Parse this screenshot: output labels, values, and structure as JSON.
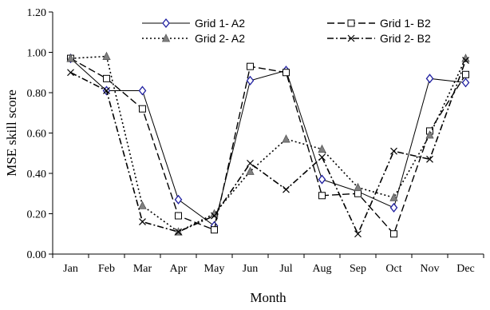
{
  "chart_data": {
    "type": "line",
    "categories": [
      "Jan",
      "Feb",
      "Mar",
      "Apr",
      "May",
      "Jun",
      "Jul",
      "Aug",
      "Sep",
      "Oct",
      "Nov",
      "Dec"
    ],
    "xlabel": "Month",
    "ylabel": "MSE skill score",
    "ylim": [
      0,
      1.2
    ],
    "yticks": [
      "0.00",
      "0.20",
      "0.40",
      "0.60",
      "0.80",
      "1.00",
      "1.20"
    ],
    "grid": false,
    "legend_position": "top",
    "series": [
      {
        "name": "Grid 1- A2",
        "values": [
          0.97,
          0.81,
          0.81,
          0.27,
          0.14,
          0.86,
          0.91,
          0.37,
          0.31,
          0.23,
          0.87,
          0.85
        ],
        "color": "#000000",
        "marker": "diamond",
        "marker_color": "#1f1fa0",
        "dash": "solid"
      },
      {
        "name": "Grid 1- B2",
        "values": [
          0.97,
          0.87,
          0.72,
          0.19,
          0.12,
          0.93,
          0.9,
          0.29,
          0.3,
          0.1,
          0.61,
          0.89
        ],
        "color": "#000000",
        "marker": "square",
        "marker_color": "#000000",
        "dash": "longdash"
      },
      {
        "name": "Grid 2- A2",
        "values": [
          0.97,
          0.98,
          0.24,
          0.11,
          0.2,
          0.41,
          0.57,
          0.52,
          0.33,
          0.28,
          0.59,
          0.97
        ],
        "color": "#000000",
        "marker": "triangle",
        "marker_color": "#808080",
        "dash": "dotted"
      },
      {
        "name": "Grid 2- B2",
        "values": [
          0.9,
          0.81,
          0.16,
          0.11,
          0.19,
          0.45,
          0.32,
          0.48,
          0.1,
          0.51,
          0.47,
          0.96
        ],
        "color": "#000000",
        "marker": "cross",
        "marker_color": "#000000",
        "dash": "dashdot"
      }
    ]
  }
}
